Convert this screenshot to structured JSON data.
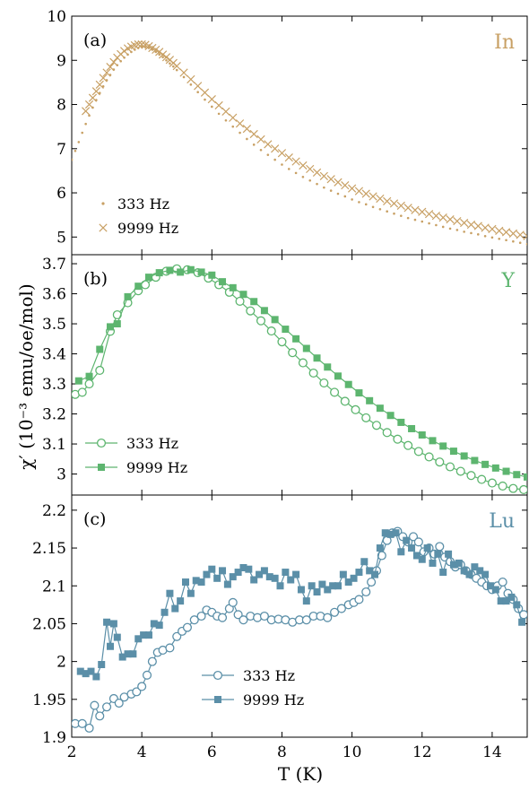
{
  "y_axis_label": "χ′ (10⁻³ emu/oe/mol)",
  "x_axis_label": "T (K)",
  "chart_data": [
    {
      "type": "scatter",
      "panel": "(a)",
      "material": "In",
      "color": "#c8a064",
      "ylim": [
        4.6,
        10
      ],
      "yticks": [
        5,
        6,
        7,
        8,
        9,
        10
      ],
      "xlim": [
        2,
        15
      ],
      "legend_position": "bottom-left",
      "series": [
        {
          "name": "333 Hz",
          "marker": "dot",
          "x": [
            2.0,
            2.1,
            2.2,
            2.3,
            2.4,
            2.5,
            2.6,
            2.7,
            2.8,
            2.9,
            3.0,
            3.1,
            3.2,
            3.3,
            3.4,
            3.5,
            3.6,
            3.7,
            3.8,
            3.9,
            4.0,
            4.1,
            4.2,
            4.3,
            4.4,
            4.5,
            4.6,
            4.7,
            4.8,
            4.9,
            5.0,
            5.2,
            5.4,
            5.6,
            5.8,
            6.0,
            6.2,
            6.4,
            6.6,
            6.8,
            7.0,
            7.2,
            7.4,
            7.6,
            7.8,
            8.0,
            8.2,
            8.4,
            8.6,
            8.8,
            9.0,
            9.2,
            9.4,
            9.6,
            9.8,
            10.0,
            10.2,
            10.4,
            10.6,
            10.8,
            11.0,
            11.2,
            11.4,
            11.6,
            11.8,
            12.0,
            12.2,
            12.4,
            12.6,
            12.8,
            13.0,
            13.2,
            13.4,
            13.6,
            13.8,
            14.0,
            14.2,
            14.4,
            14.6,
            14.8,
            15.0
          ],
          "y": [
            6.75,
            6.95,
            7.15,
            7.36,
            7.56,
            7.75,
            7.93,
            8.1,
            8.26,
            8.41,
            8.55,
            8.67,
            8.79,
            8.89,
            8.98,
            9.06,
            9.13,
            9.19,
            9.24,
            9.28,
            9.31,
            9.3,
            9.28,
            9.24,
            9.19,
            9.13,
            9.07,
            9.0,
            8.93,
            8.86,
            8.78,
            8.62,
            8.45,
            8.28,
            8.11,
            7.95,
            7.79,
            7.64,
            7.5,
            7.36,
            7.22,
            7.09,
            6.97,
            6.86,
            6.75,
            6.64,
            6.54,
            6.45,
            6.36,
            6.28,
            6.2,
            6.12,
            6.05,
            5.98,
            5.92,
            5.85,
            5.79,
            5.74,
            5.68,
            5.63,
            5.58,
            5.53,
            5.48,
            5.43,
            5.39,
            5.35,
            5.31,
            5.27,
            5.23,
            5.19,
            5.16,
            5.12,
            5.09,
            5.06,
            5.02,
            4.99,
            4.96,
            4.93,
            4.9,
            4.87,
            4.84
          ]
        },
        {
          "name": "9999 Hz",
          "marker": "x",
          "x": [
            2.4,
            2.5,
            2.6,
            2.7,
            2.8,
            2.9,
            3.0,
            3.1,
            3.2,
            3.3,
            3.4,
            3.5,
            3.6,
            3.7,
            3.8,
            3.9,
            4.0,
            4.1,
            4.2,
            4.3,
            4.4,
            4.5,
            4.6,
            4.7,
            4.8,
            4.9,
            5.0,
            5.2,
            5.4,
            5.6,
            5.8,
            6.0,
            6.2,
            6.4,
            6.6,
            6.8,
            7.0,
            7.2,
            7.4,
            7.6,
            7.8,
            8.0,
            8.2,
            8.4,
            8.6,
            8.8,
            9.0,
            9.2,
            9.4,
            9.6,
            9.8,
            10.0,
            10.2,
            10.4,
            10.6,
            10.8,
            11.0,
            11.2,
            11.4,
            11.6,
            11.8,
            12.0,
            12.2,
            12.4,
            12.6,
            12.8,
            13.0,
            13.2,
            13.4,
            13.6,
            13.8,
            14.0,
            14.2,
            14.4,
            14.6,
            14.8,
            15.0
          ],
          "y": [
            7.85,
            8.0,
            8.15,
            8.3,
            8.45,
            8.6,
            8.72,
            8.85,
            8.96,
            9.06,
            9.14,
            9.21,
            9.27,
            9.31,
            9.34,
            9.36,
            9.36,
            9.35,
            9.32,
            9.28,
            9.24,
            9.19,
            9.13,
            9.07,
            9.01,
            8.94,
            8.87,
            8.72,
            8.57,
            8.42,
            8.27,
            8.12,
            7.98,
            7.84,
            7.7,
            7.57,
            7.45,
            7.33,
            7.21,
            7.1,
            7.0,
            6.9,
            6.8,
            6.71,
            6.62,
            6.54,
            6.46,
            6.38,
            6.31,
            6.24,
            6.17,
            6.1,
            6.04,
            5.98,
            5.92,
            5.87,
            5.81,
            5.76,
            5.71,
            5.66,
            5.61,
            5.57,
            5.52,
            5.48,
            5.44,
            5.4,
            5.36,
            5.32,
            5.28,
            5.25,
            5.21,
            5.18,
            5.14,
            5.11,
            5.08,
            5.05,
            5.02
          ]
        }
      ]
    },
    {
      "type": "line",
      "panel": "(b)",
      "material": "Y",
      "color": "#5db56f",
      "ylim": [
        2.93,
        3.73
      ],
      "yticks": [
        3.0,
        3.1,
        3.2,
        3.3,
        3.4,
        3.5,
        3.6,
        3.7
      ],
      "ytick_labels": [
        "3",
        "3.1",
        "3.2",
        "3.3",
        "3.4",
        "3.5",
        "3.6",
        "3.7"
      ],
      "xlim": [
        2,
        15
      ],
      "legend_position": "bottom-left",
      "series": [
        {
          "name": "333 Hz",
          "marker": "open-circle",
          "x": [
            2.1,
            2.3,
            2.5,
            2.8,
            3.1,
            3.3,
            3.6,
            3.9,
            4.1,
            4.4,
            4.7,
            5.0,
            5.3,
            5.6,
            5.9,
            6.2,
            6.5,
            6.8,
            7.1,
            7.4,
            7.7,
            8.0,
            8.3,
            8.6,
            8.9,
            9.2,
            9.5,
            9.8,
            10.1,
            10.4,
            10.7,
            11.0,
            11.3,
            11.6,
            11.9,
            12.2,
            12.5,
            12.8,
            13.1,
            13.4,
            13.7,
            14.0,
            14.3,
            14.6,
            14.9
          ],
          "y": [
            3.265,
            3.272,
            3.3,
            3.345,
            3.475,
            3.53,
            3.57,
            3.61,
            3.63,
            3.655,
            3.675,
            3.683,
            3.68,
            3.67,
            3.652,
            3.63,
            3.605,
            3.575,
            3.543,
            3.51,
            3.476,
            3.44,
            3.404,
            3.37,
            3.336,
            3.303,
            3.272,
            3.242,
            3.214,
            3.187,
            3.162,
            3.138,
            3.116,
            3.095,
            3.075,
            3.057,
            3.04,
            3.024,
            3.009,
            2.995,
            2.982,
            2.97,
            2.96,
            2.952,
            2.948
          ]
        },
        {
          "name": "9999 Hz",
          "marker": "filled-square",
          "x": [
            2.2,
            2.5,
            2.8,
            3.1,
            3.3,
            3.6,
            3.9,
            4.2,
            4.5,
            4.8,
            5.1,
            5.4,
            5.7,
            6.0,
            6.3,
            6.6,
            6.9,
            7.2,
            7.5,
            7.8,
            8.1,
            8.4,
            8.7,
            9.0,
            9.3,
            9.6,
            9.9,
            10.2,
            10.5,
            10.8,
            11.1,
            11.4,
            11.7,
            12.0,
            12.3,
            12.6,
            12.9,
            13.2,
            13.5,
            13.8,
            14.1,
            14.4,
            14.7,
            15.0
          ],
          "y": [
            3.31,
            3.325,
            3.415,
            3.49,
            3.5,
            3.59,
            3.625,
            3.655,
            3.67,
            3.678,
            3.672,
            3.68,
            3.672,
            3.662,
            3.64,
            3.62,
            3.598,
            3.574,
            3.544,
            3.514,
            3.482,
            3.45,
            3.418,
            3.386,
            3.356,
            3.326,
            3.298,
            3.27,
            3.244,
            3.219,
            3.195,
            3.172,
            3.151,
            3.13,
            3.111,
            3.093,
            3.076,
            3.06,
            3.045,
            3.032,
            3.02,
            3.009,
            2.998,
            2.99
          ]
        }
      ]
    },
    {
      "type": "line",
      "panel": "(c)",
      "material": "Lu",
      "color": "#5b8fa8",
      "ylim": [
        1.9,
        2.22
      ],
      "yticks": [
        1.9,
        1.95,
        2.0,
        2.05,
        2.1,
        2.15,
        2.2
      ],
      "ytick_labels": [
        "1.9",
        "1.95",
        "2",
        "2.05",
        "2.1",
        "2.15",
        "2.2"
      ],
      "xlim": [
        2,
        15
      ],
      "xticks": [
        2,
        4,
        6,
        8,
        10,
        12,
        14
      ],
      "legend_position": "bottom-center",
      "series": [
        {
          "name": "333 Hz",
          "marker": "open-circle",
          "x": [
            2.1,
            2.3,
            2.5,
            2.65,
            2.8,
            3.0,
            3.2,
            3.35,
            3.5,
            3.7,
            3.85,
            4.0,
            4.15,
            4.3,
            4.45,
            4.6,
            4.8,
            5.0,
            5.15,
            5.3,
            5.5,
            5.7,
            5.85,
            6.0,
            6.15,
            6.3,
            6.5,
            6.6,
            6.75,
            6.9,
            7.1,
            7.3,
            7.5,
            7.7,
            7.9,
            8.1,
            8.3,
            8.5,
            8.7,
            8.9,
            9.1,
            9.3,
            9.5,
            9.7,
            9.9,
            10.05,
            10.2,
            10.4,
            10.55,
            10.7,
            10.85,
            11.0,
            11.15,
            11.3,
            11.45,
            11.6,
            11.75,
            11.9,
            12.05,
            12.2,
            12.35,
            12.5,
            12.65,
            12.8,
            12.95,
            13.1,
            13.25,
            13.4,
            13.55,
            13.7,
            13.85,
            14.0,
            14.15,
            14.3,
            14.45,
            14.6,
            14.75,
            14.9
          ],
          "y": [
            1.918,
            1.918,
            1.912,
            1.942,
            1.928,
            1.94,
            1.951,
            1.945,
            1.953,
            1.957,
            1.96,
            1.967,
            1.982,
            2.0,
            2.012,
            2.015,
            2.018,
            2.033,
            2.04,
            2.045,
            2.055,
            2.06,
            2.068,
            2.065,
            2.06,
            2.058,
            2.07,
            2.078,
            2.062,
            2.055,
            2.06,
            2.058,
            2.06,
            2.055,
            2.056,
            2.055,
            2.052,
            2.055,
            2.055,
            2.06,
            2.06,
            2.058,
            2.065,
            2.07,
            2.075,
            2.078,
            2.082,
            2.092,
            2.105,
            2.12,
            2.14,
            2.16,
            2.17,
            2.172,
            2.165,
            2.158,
            2.165,
            2.158,
            2.145,
            2.15,
            2.142,
            2.152,
            2.138,
            2.132,
            2.125,
            2.128,
            2.12,
            2.115,
            2.11,
            2.105,
            2.1,
            2.095,
            2.1,
            2.105,
            2.09,
            2.082,
            2.07,
            2.062
          ]
        },
        {
          "name": "9999 Hz",
          "marker": "filled-square",
          "x": [
            2.25,
            2.4,
            2.55,
            2.7,
            2.85,
            3.0,
            3.1,
            3.2,
            3.3,
            3.45,
            3.6,
            3.75,
            3.9,
            4.05,
            4.2,
            4.35,
            4.5,
            4.65,
            4.8,
            4.95,
            5.1,
            5.25,
            5.4,
            5.55,
            5.7,
            5.85,
            6.0,
            6.15,
            6.3,
            6.45,
            6.6,
            6.75,
            6.9,
            7.05,
            7.2,
            7.35,
            7.5,
            7.65,
            7.8,
            7.95,
            8.1,
            8.25,
            8.4,
            8.55,
            8.7,
            8.85,
            9.0,
            9.15,
            9.3,
            9.45,
            9.6,
            9.75,
            9.9,
            10.05,
            10.2,
            10.35,
            10.5,
            10.65,
            10.8,
            10.95,
            11.1,
            11.25,
            11.4,
            11.55,
            11.7,
            11.85,
            12.0,
            12.15,
            12.3,
            12.45,
            12.6,
            12.75,
            12.9,
            13.05,
            13.2,
            13.35,
            13.5,
            13.65,
            13.8,
            13.95,
            14.1,
            14.25,
            14.4,
            14.55,
            14.7,
            14.85
          ],
          "y": [
            1.987,
            1.984,
            1.987,
            1.98,
            1.996,
            2.052,
            2.02,
            2.05,
            2.032,
            2.006,
            2.01,
            2.01,
            2.03,
            2.035,
            2.035,
            2.05,
            2.048,
            2.065,
            2.09,
            2.07,
            2.08,
            2.105,
            2.09,
            2.107,
            2.105,
            2.115,
            2.122,
            2.11,
            2.12,
            2.102,
            2.112,
            2.118,
            2.124,
            2.122,
            2.108,
            2.115,
            2.12,
            2.112,
            2.11,
            2.1,
            2.118,
            2.108,
            2.115,
            2.095,
            2.08,
            2.1,
            2.092,
            2.102,
            2.095,
            2.1,
            2.1,
            2.115,
            2.105,
            2.11,
            2.118,
            2.132,
            2.12,
            2.115,
            2.15,
            2.17,
            2.168,
            2.17,
            2.145,
            2.16,
            2.15,
            2.14,
            2.135,
            2.15,
            2.13,
            2.142,
            2.118,
            2.142,
            2.128,
            2.13,
            2.12,
            2.115,
            2.125,
            2.12,
            2.115,
            2.1,
            2.095,
            2.08,
            2.08,
            2.085,
            2.075,
            2.052
          ]
        }
      ]
    }
  ]
}
